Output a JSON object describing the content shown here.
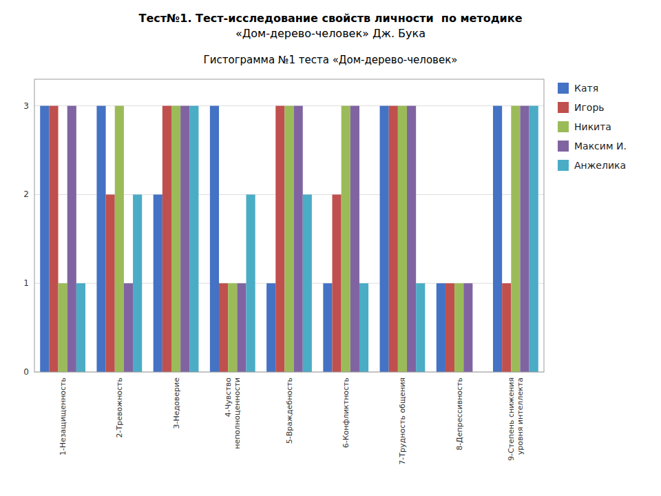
{
  "chart_data": {
    "type": "bar",
    "title": "Тест№1. Тест-исследование свойств личности  по методике\n«Дом-дерево-человек» Дж. Бука",
    "subtitle": "Гистограмма №1 теста «Дом-дерево-человек»",
    "categories": [
      "1-Незащищенность",
      "2-Тревожность",
      "3-Недоверие",
      "4-Чувство\nнеполноценности",
      "5-Враждебность",
      "6-Конфликтность",
      "7-Трудность общения",
      "8-Депрессивность",
      "9-Степень снижения\nуровня интеллекта"
    ],
    "series": [
      {
        "name": "Катя",
        "color": "#4472c4",
        "values": [
          3,
          3,
          2,
          3,
          1,
          1,
          3,
          1,
          3
        ]
      },
      {
        "name": "Игорь",
        "color": "#c0504d",
        "values": [
          3,
          2,
          3,
          1,
          3,
          2,
          3,
          1,
          1
        ]
      },
      {
        "name": "Никита",
        "color": "#9bbb59",
        "values": [
          1,
          3,
          3,
          1,
          3,
          3,
          3,
          1,
          3
        ]
      },
      {
        "name": "Максим И.",
        "color": "#8064a2",
        "values": [
          3,
          1,
          3,
          1,
          3,
          3,
          3,
          1,
          3
        ]
      },
      {
        "name": "Анжелика",
        "color": "#4bacc6",
        "values": [
          1,
          2,
          3,
          2,
          2,
          1,
          1,
          0,
          3
        ]
      }
    ],
    "ylim": [
      0,
      3.3
    ],
    "yticks": [
      0,
      1,
      2,
      3
    ],
    "grid": true,
    "legend": "right"
  }
}
